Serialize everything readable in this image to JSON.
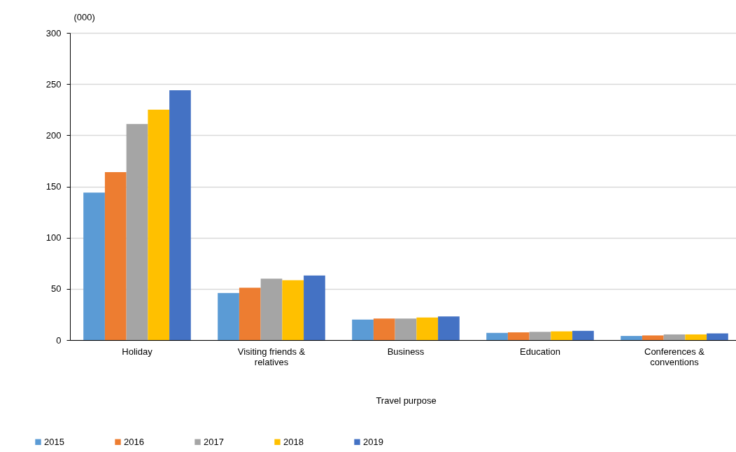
{
  "chart_data": {
    "type": "bar",
    "xlabel": "Travel purpose",
    "ylabel": "(000)",
    "categories": [
      "Holiday",
      "Visiting friends & relatives",
      "Business",
      "Education",
      "Conferences & conventions"
    ],
    "series": [
      {
        "name": "2015",
        "color": "#5b9bd5",
        "values": [
          144,
          46,
          20,
          7,
          4
        ]
      },
      {
        "name": "2016",
        "color": "#ed7d31",
        "values": [
          164,
          51,
          21,
          7.5,
          4.5
        ]
      },
      {
        "name": "2017",
        "color": "#a5a5a5",
        "values": [
          211,
          60,
          21,
          8,
          5.5
        ]
      },
      {
        "name": "2018",
        "color": "#ffc000",
        "values": [
          225,
          58.5,
          22,
          8.5,
          5.5
        ]
      },
      {
        "name": "2019",
        "color": "#4472c4",
        "values": [
          244,
          63,
          23,
          9,
          6.5
        ]
      }
    ],
    "ylim": [
      0,
      300
    ],
    "yticks": [
      0,
      50,
      100,
      150,
      200,
      250,
      300
    ],
    "grid": "y",
    "legend": "bottom left"
  }
}
